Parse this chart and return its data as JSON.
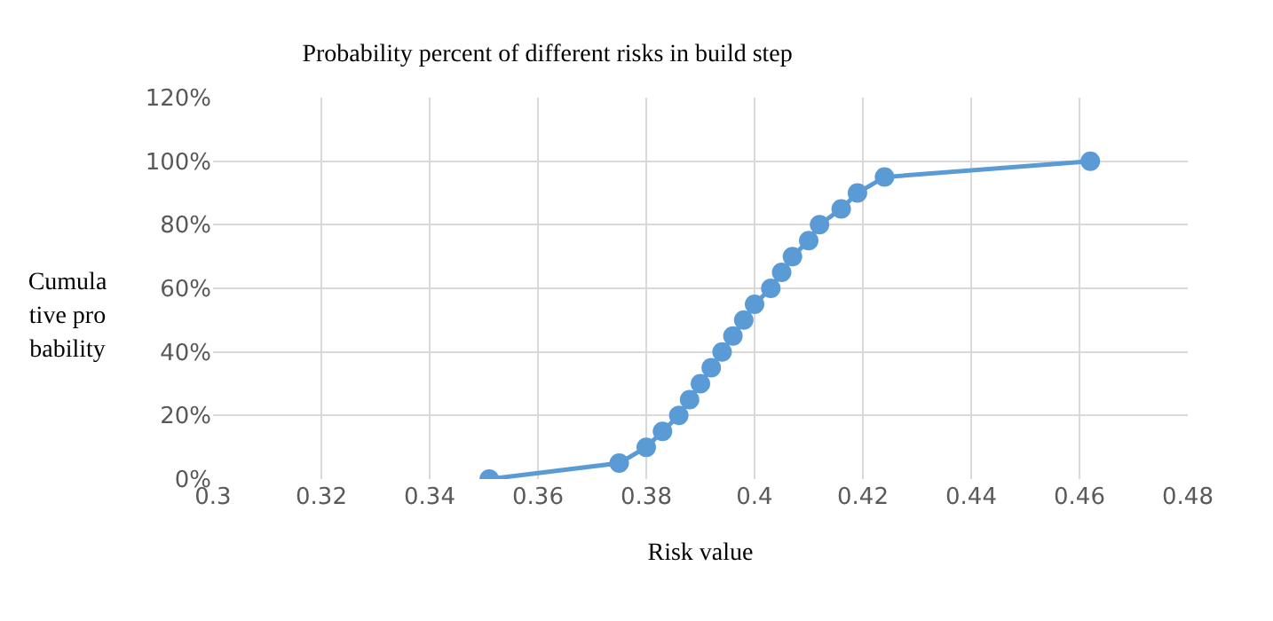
{
  "chart_data": {
    "type": "line",
    "title": "Probability percent of different risks in build step",
    "xlabel": "Risk value",
    "ylabel": "Cumulative probability",
    "x": [
      0.351,
      0.375,
      0.38,
      0.383,
      0.386,
      0.388,
      0.39,
      0.392,
      0.394,
      0.396,
      0.398,
      0.4,
      0.403,
      0.405,
      0.407,
      0.41,
      0.412,
      0.416,
      0.419,
      0.424,
      0.462
    ],
    "series": [
      {
        "color": "#5b9bd5",
        "values": [
          0,
          5,
          10,
          15,
          20,
          25,
          30,
          35,
          40,
          45,
          50,
          55,
          60,
          65,
          70,
          75,
          80,
          85,
          90,
          95,
          100
        ]
      }
    ],
    "xlim": [
      0.3,
      0.48
    ],
    "xticks": [
      0.3,
      0.32,
      0.34,
      0.36,
      0.38,
      0.4,
      0.42,
      0.44,
      0.46,
      0.48
    ],
    "ylim": [
      0,
      120
    ],
    "yticks": [
      {
        "value": 0,
        "label": "0%"
      },
      {
        "value": 20,
        "label": "20%"
      },
      {
        "value": 40,
        "label": "40%"
      },
      {
        "value": 60,
        "label": "60%"
      },
      {
        "value": 80,
        "label": "80%"
      },
      {
        "value": 100,
        "label": "100%"
      },
      {
        "value": 120,
        "label": "120%"
      }
    ],
    "grid": true,
    "marker": "circle",
    "line_style": "solid"
  }
}
